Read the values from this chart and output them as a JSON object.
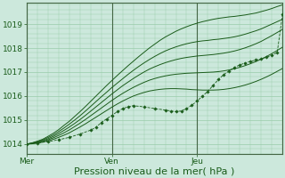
{
  "background_color": "#cce8dc",
  "plot_bg_color": "#cce8dc",
  "grid_color": "#99ccaa",
  "line_color": "#1a5c1a",
  "ylim": [
    1013.6,
    1019.9
  ],
  "xlim": [
    0,
    48
  ],
  "yticks": [
    1014,
    1015,
    1016,
    1017,
    1018,
    1019
  ],
  "xtick_positions": [
    0,
    16,
    32
  ],
  "xtick_labels": [
    "Mer",
    "Ven",
    "Jeu"
  ],
  "xlabel": "Pression niveau de la mer( hPa )",
  "xlabel_fontsize": 8,
  "tick_fontsize": 6.5,
  "smooth_lines": [
    [
      1014.0,
      1014.05,
      1014.12,
      1014.2,
      1014.32,
      1014.45,
      1014.6,
      1014.78,
      1014.95,
      1015.15,
      1015.35,
      1015.56,
      1015.78,
      1016.0,
      1016.22,
      1016.44,
      1016.65,
      1016.86,
      1017.06,
      1017.26,
      1017.45,
      1017.64,
      1017.82,
      1018.0,
      1018.16,
      1018.32,
      1018.46,
      1018.58,
      1018.7,
      1018.8,
      1018.89,
      1018.97,
      1019.04,
      1019.1,
      1019.15,
      1019.2,
      1019.24,
      1019.27,
      1019.3,
      1019.32,
      1019.35,
      1019.38,
      1019.42,
      1019.46,
      1019.52,
      1019.58,
      1019.65,
      1019.73,
      1019.8
    ],
    [
      1014.0,
      1014.04,
      1014.1,
      1014.17,
      1014.27,
      1014.38,
      1014.52,
      1014.67,
      1014.83,
      1015.0,
      1015.18,
      1015.37,
      1015.57,
      1015.77,
      1015.97,
      1016.16,
      1016.36,
      1016.54,
      1016.72,
      1016.9,
      1017.07,
      1017.23,
      1017.38,
      1017.52,
      1017.65,
      1017.77,
      1017.88,
      1017.97,
      1018.05,
      1018.12,
      1018.18,
      1018.23,
      1018.27,
      1018.3,
      1018.32,
      1018.35,
      1018.37,
      1018.4,
      1018.43,
      1018.47,
      1018.52,
      1018.58,
      1018.65,
      1018.72,
      1018.8,
      1018.9,
      1019.0,
      1019.1,
      1019.2
    ],
    [
      1014.0,
      1014.03,
      1014.08,
      1014.14,
      1014.22,
      1014.32,
      1014.44,
      1014.57,
      1014.71,
      1014.86,
      1015.02,
      1015.19,
      1015.37,
      1015.55,
      1015.73,
      1015.91,
      1016.09,
      1016.26,
      1016.43,
      1016.58,
      1016.73,
      1016.87,
      1017.0,
      1017.12,
      1017.22,
      1017.31,
      1017.39,
      1017.46,
      1017.52,
      1017.57,
      1017.61,
      1017.64,
      1017.67,
      1017.69,
      1017.71,
      1017.73,
      1017.76,
      1017.79,
      1017.83,
      1017.88,
      1017.94,
      1018.01,
      1018.09,
      1018.18,
      1018.28,
      1018.4,
      1018.52,
      1018.65,
      1018.78
    ],
    [
      1014.0,
      1014.02,
      1014.06,
      1014.11,
      1014.18,
      1014.26,
      1014.36,
      1014.47,
      1014.59,
      1014.73,
      1014.87,
      1015.02,
      1015.18,
      1015.34,
      1015.5,
      1015.66,
      1015.82,
      1015.97,
      1016.11,
      1016.24,
      1016.36,
      1016.47,
      1016.57,
      1016.66,
      1016.73,
      1016.79,
      1016.84,
      1016.88,
      1016.91,
      1016.93,
      1016.95,
      1016.96,
      1016.97,
      1016.98,
      1016.99,
      1017.0,
      1017.02,
      1017.05,
      1017.09,
      1017.14,
      1017.2,
      1017.27,
      1017.35,
      1017.44,
      1017.54,
      1017.65,
      1017.77,
      1017.9,
      1018.04
    ],
    [
      1014.0,
      1014.01,
      1014.04,
      1014.08,
      1014.14,
      1014.2,
      1014.28,
      1014.37,
      1014.47,
      1014.59,
      1014.71,
      1014.84,
      1014.98,
      1015.12,
      1015.26,
      1015.4,
      1015.54,
      1015.67,
      1015.79,
      1015.9,
      1016.0,
      1016.08,
      1016.15,
      1016.21,
      1016.25,
      1016.28,
      1016.3,
      1016.31,
      1016.31,
      1016.3,
      1016.29,
      1016.27,
      1016.26,
      1016.25,
      1016.25,
      1016.25,
      1016.26,
      1016.28,
      1016.31,
      1016.35,
      1016.4,
      1016.46,
      1016.53,
      1016.61,
      1016.7,
      1016.8,
      1016.91,
      1017.03,
      1017.15
    ]
  ],
  "dotted_line_x": [
    0,
    2,
    4,
    6,
    8,
    10,
    12,
    13,
    14,
    15,
    16,
    17,
    18,
    19,
    20,
    22,
    24,
    26,
    27,
    28,
    29,
    30,
    31,
    32,
    33,
    34,
    35,
    36,
    37,
    38,
    39,
    40,
    41,
    42,
    43,
    44,
    45,
    46,
    47,
    48
  ],
  "dotted_line_y": [
    1014.0,
    1014.05,
    1014.1,
    1014.18,
    1014.28,
    1014.42,
    1014.58,
    1014.7,
    1014.9,
    1015.05,
    1015.2,
    1015.35,
    1015.48,
    1015.55,
    1015.6,
    1015.55,
    1015.48,
    1015.42,
    1015.38,
    1015.35,
    1015.38,
    1015.48,
    1015.62,
    1015.8,
    1016.0,
    1016.2,
    1016.45,
    1016.7,
    1016.9,
    1017.05,
    1017.2,
    1017.3,
    1017.38,
    1017.45,
    1017.5,
    1017.55,
    1017.62,
    1017.7,
    1017.82,
    1019.4
  ]
}
